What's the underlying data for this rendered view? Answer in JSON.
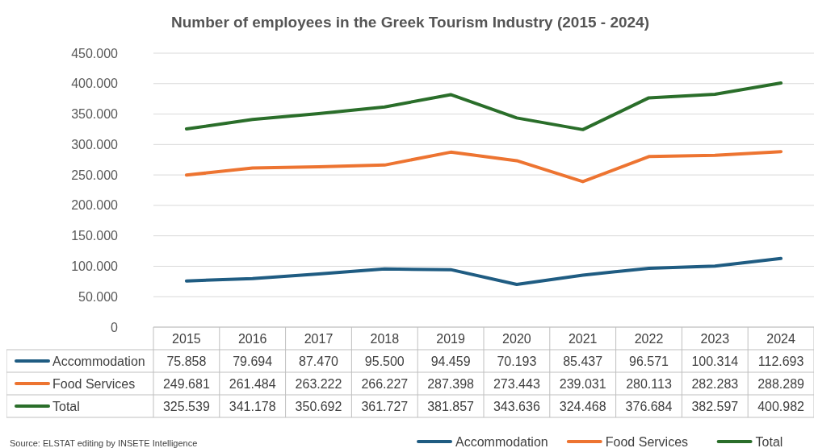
{
  "chart_data": {
    "type": "line",
    "title": "Number of employees in the Greek Tourism Industry (2015 - 2024)",
    "categories": [
      "2015",
      "2016",
      "2017",
      "2018",
      "2019",
      "2020",
      "2021",
      "2022",
      "2023",
      "2024"
    ],
    "series": [
      {
        "name": "Accommodation",
        "color": "#1f5c82",
        "values": [
          75858,
          79694,
          87470,
          95500,
          94459,
          70193,
          85437,
          96571,
          100314,
          112693
        ],
        "value_labels": [
          "75.858",
          "79.694",
          "87.470",
          "95.500",
          "94.459",
          "70.193",
          "85.437",
          "96.571",
          "100.314",
          "112.693"
        ]
      },
      {
        "name": "Food Services",
        "color": "#ed7431",
        "values": [
          249681,
          261484,
          263222,
          266227,
          287398,
          273443,
          239031,
          280113,
          282283,
          288289
        ],
        "value_labels": [
          "249.681",
          "261.484",
          "263.222",
          "266.227",
          "287.398",
          "273.443",
          "239.031",
          "280.113",
          "282.283",
          "288.289"
        ]
      },
      {
        "name": "Total",
        "color": "#2a6e2a",
        "values": [
          325539,
          341178,
          350692,
          361727,
          381857,
          343636,
          324468,
          376684,
          382597,
          400982
        ],
        "value_labels": [
          "325.539",
          "341.178",
          "350.692",
          "361.727",
          "381.857",
          "343.636",
          "324.468",
          "376.684",
          "382.597",
          "400.982"
        ]
      }
    ],
    "ylim": [
      0,
      450000
    ],
    "yticks": [
      {
        "value": 0,
        "label": "0"
      },
      {
        "value": 50000,
        "label": "50.000"
      },
      {
        "value": 100000,
        "label": "100.000"
      },
      {
        "value": 150000,
        "label": "150.000"
      },
      {
        "value": 200000,
        "label": "200.000"
      },
      {
        "value": 250000,
        "label": "250.000"
      },
      {
        "value": 300000,
        "label": "300.000"
      },
      {
        "value": 350000,
        "label": "350.000"
      },
      {
        "value": 400000,
        "label": "400.000"
      },
      {
        "value": 450000,
        "label": "450.000"
      }
    ],
    "grid": "y",
    "legend": "bottom",
    "line_style": "solid",
    "marker": "none",
    "annotations": [
      "Source: ELSTAT editing by INSETE Intelligence"
    ]
  }
}
